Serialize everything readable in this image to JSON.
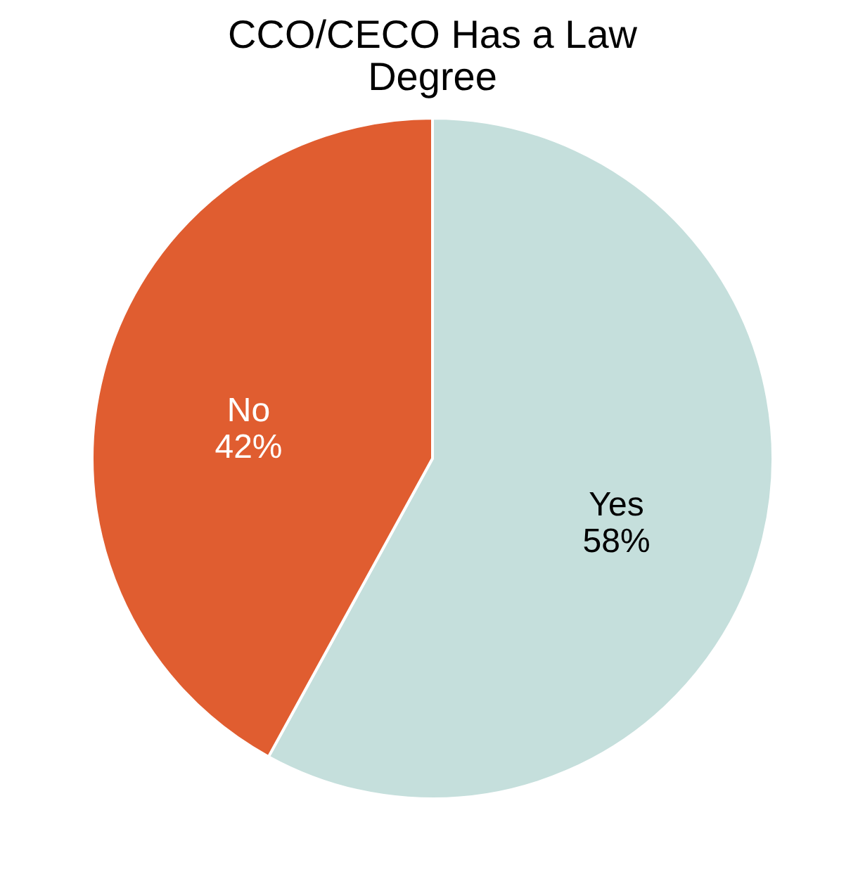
{
  "chart_data": {
    "type": "pie",
    "title": "CCO/CECO Has a Law Degree",
    "categories": [
      "Yes",
      "No"
    ],
    "values": [
      58,
      42
    ],
    "colors": [
      "#c5dfdc",
      "#e05d30"
    ],
    "value_labels": [
      "58%",
      "42%"
    ],
    "legend": false
  }
}
